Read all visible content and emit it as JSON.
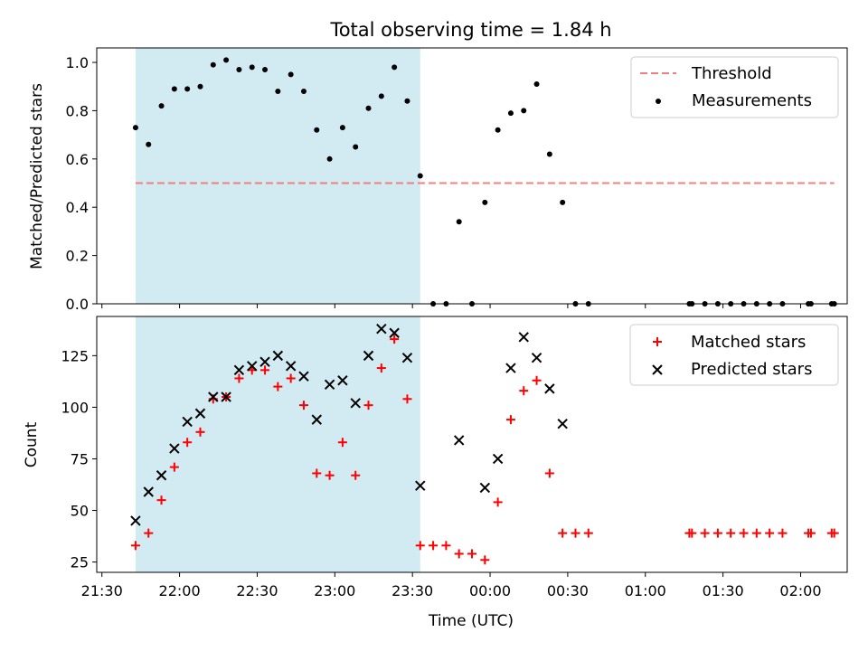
{
  "title": "Total observing time = 1.84 h",
  "colors": {
    "threshold": "#f08080",
    "measurement": "#000000",
    "matched": "#ff0000",
    "predicted": "#000000",
    "observing_window": "#add8e6"
  },
  "chart_data": [
    {
      "type": "scatter",
      "panel": "top",
      "ylabel": "Matched/Predicted stars",
      "ylim": [
        0,
        1.06
      ],
      "yticks": [
        0.0,
        0.2,
        0.4,
        0.6,
        0.8,
        1.0
      ],
      "ytick_labels": [
        "0.0",
        "0.2",
        "0.4",
        "0.6",
        "0.8",
        "1.0"
      ],
      "xlim": [
        "21:28",
        "02:18"
      ],
      "observing_window": [
        "21:43",
        "23:33"
      ],
      "legend_position": "top-right",
      "threshold": {
        "name": "Threshold",
        "y": 0.5,
        "x": [
          "21:43",
          "02:13"
        ],
        "style": "dashed"
      },
      "series": [
        {
          "name": "Measurements",
          "marker": "dot",
          "x": [
            "21:43",
            "21:48",
            "21:53",
            "21:58",
            "22:03",
            "22:08",
            "22:13",
            "22:18",
            "22:23",
            "22:28",
            "22:33",
            "22:38",
            "22:43",
            "22:48",
            "22:53",
            "22:58",
            "23:03",
            "23:08",
            "23:13",
            "23:18",
            "23:23",
            "23:28",
            "23:33",
            "23:38",
            "23:43",
            "23:48",
            "23:53",
            "23:58",
            "00:03",
            "00:08",
            "00:13",
            "00:18",
            "00:23",
            "00:28",
            "00:33",
            "00:38",
            "01:17",
            "01:18",
            "01:23",
            "01:28",
            "01:33",
            "01:38",
            "01:43",
            "01:48",
            "01:53",
            "02:03",
            "02:04",
            "02:12",
            "02:13"
          ],
          "y": [
            0.73,
            0.66,
            0.82,
            0.89,
            0.89,
            0.9,
            0.99,
            1.01,
            0.97,
            0.98,
            0.97,
            0.88,
            0.95,
            0.88,
            0.72,
            0.6,
            0.73,
            0.65,
            0.81,
            0.86,
            0.98,
            0.84,
            0.53,
            0.0,
            0.0,
            0.34,
            0.0,
            0.42,
            0.72,
            0.79,
            0.8,
            0.91,
            0.62,
            0.42,
            0.0,
            0.0,
            0.0,
            0.0,
            0.0,
            0.0,
            0.0,
            0.0,
            0.0,
            0.0,
            0.0,
            0.0,
            0.0,
            0.0,
            0.0
          ]
        }
      ]
    },
    {
      "type": "scatter",
      "panel": "bottom",
      "xlabel": "Time (UTC)",
      "ylabel": "Count",
      "ylim": [
        20,
        144
      ],
      "yticks": [
        25,
        50,
        75,
        100,
        125
      ],
      "ytick_labels": [
        "25",
        "50",
        "75",
        "100",
        "125"
      ],
      "xlim": [
        "21:28",
        "02:18"
      ],
      "xticks": [
        "21:30",
        "22:00",
        "22:30",
        "23:00",
        "23:30",
        "00:00",
        "00:30",
        "01:00",
        "01:30",
        "02:00"
      ],
      "observing_window": [
        "21:43",
        "23:33"
      ],
      "legend_position": "top-right",
      "series": [
        {
          "name": "Matched stars",
          "marker": "plus",
          "x": [
            "21:43",
            "21:48",
            "21:53",
            "21:58",
            "22:03",
            "22:08",
            "22:13",
            "22:18",
            "22:23",
            "22:28",
            "22:33",
            "22:38",
            "22:43",
            "22:48",
            "22:53",
            "22:58",
            "23:03",
            "23:08",
            "23:13",
            "23:18",
            "23:23",
            "23:28",
            "23:33",
            "23:38",
            "23:43",
            "23:48",
            "23:53",
            "23:58",
            "00:03",
            "00:08",
            "00:13",
            "00:18",
            "00:23",
            "00:28",
            "00:33",
            "00:38",
            "01:17",
            "01:18",
            "01:23",
            "01:28",
            "01:33",
            "01:38",
            "01:43",
            "01:48",
            "01:53",
            "02:03",
            "02:04",
            "02:12",
            "02:13"
          ],
          "y": [
            33,
            39,
            55,
            71,
            83,
            88,
            104,
            105,
            114,
            118,
            118,
            110,
            114,
            101,
            68,
            67,
            83,
            67,
            101,
            119,
            133,
            104,
            33,
            33,
            33,
            29,
            29,
            26,
            54,
            94,
            108,
            113,
            68,
            39,
            39,
            39,
            39,
            39,
            39,
            39,
            39,
            39,
            39,
            39,
            39,
            39,
            39,
            39,
            39
          ]
        },
        {
          "name": "Predicted stars",
          "marker": "x",
          "x": [
            "21:43",
            "21:48",
            "21:53",
            "21:58",
            "22:03",
            "22:08",
            "22:13",
            "22:18",
            "22:23",
            "22:28",
            "22:33",
            "22:38",
            "22:43",
            "22:48",
            "22:53",
            "22:58",
            "23:03",
            "23:08",
            "23:13",
            "23:18",
            "23:23",
            "23:28",
            "23:33",
            "23:48",
            "23:58",
            "00:03",
            "00:08",
            "00:13",
            "00:18",
            "00:23",
            "00:28"
          ],
          "y": [
            45,
            59,
            67,
            80,
            93,
            97,
            105,
            105,
            118,
            120,
            122,
            125,
            120,
            115,
            94,
            111,
            113,
            102,
            125,
            138,
            136,
            124,
            62,
            84,
            61,
            75,
            119,
            134,
            124,
            109,
            92
          ]
        }
      ]
    }
  ]
}
